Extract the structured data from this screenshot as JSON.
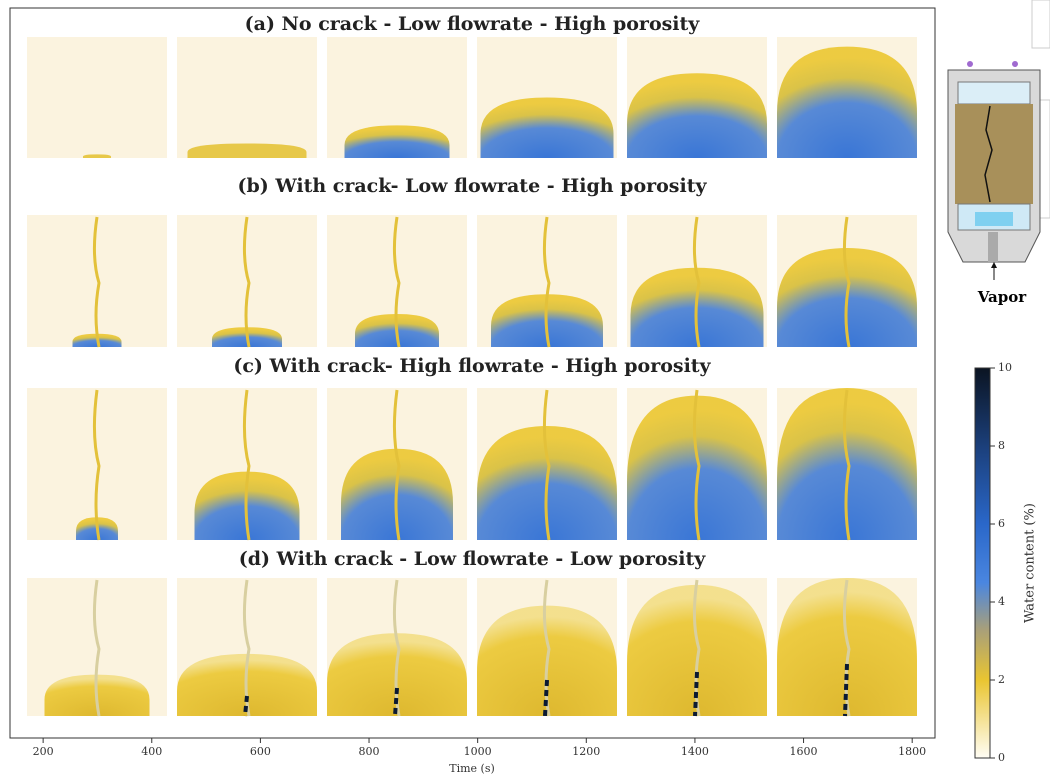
{
  "figure": {
    "rows": [
      "(a) No crack - Low flowrate - High porosity",
      "(b) With crack- Low flowrate - High porosity",
      "(c) With crack- High flowrate - High porosity",
      "(d) With crack - Low flowrate - Low porosity"
    ],
    "x_axis": {
      "label": "Time (s)",
      "ticks": [
        200,
        400,
        600,
        800,
        1000,
        1200,
        1400,
        1600,
        1800
      ],
      "lim": [
        139,
        1842
      ]
    },
    "inset_label": "Vapor",
    "colorbar": {
      "label": "Water content (%)",
      "ticks": [
        0,
        2,
        4,
        6,
        8,
        10
      ],
      "lim": [
        0,
        10
      ]
    }
  }
}
